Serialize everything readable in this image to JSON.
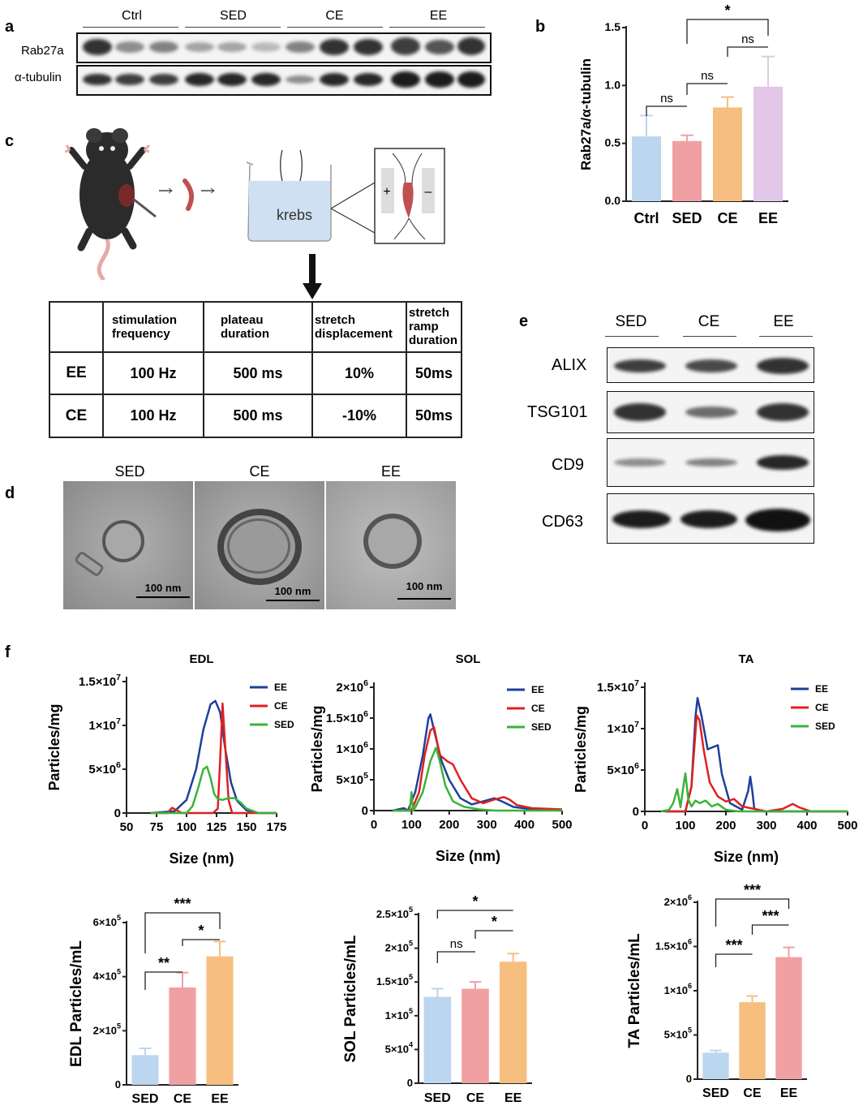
{
  "panels": {
    "a": "a",
    "b": "b",
    "c": "c",
    "d": "d",
    "e": "e",
    "f": "f"
  },
  "panel_a": {
    "groups": [
      "Ctrl",
      "SED",
      "CE",
      "EE"
    ],
    "rows": [
      "Rab27a",
      "α-tubulin"
    ]
  },
  "panel_b_chart": {
    "ylabel": "Rab27a/α-tubulin",
    "sig": [
      "ns",
      "ns",
      "ns",
      "*"
    ]
  },
  "panel_c": {
    "beaker_label": "krebs",
    "plus": "+",
    "minus": "–",
    "table": {
      "header": [
        "",
        "stimulation frequency",
        "plateau duration",
        "stretch displacement",
        "stretch ramp duration"
      ],
      "rows": [
        [
          "EE",
          "100 Hz",
          "500 ms",
          "10%",
          "50ms"
        ],
        [
          "CE",
          "100 Hz",
          "500 ms",
          "-10%",
          "50ms"
        ]
      ]
    }
  },
  "panel_d": {
    "labels": [
      "SED",
      "CE",
      "EE"
    ],
    "scale": "100 nm"
  },
  "panel_e": {
    "groups": [
      "SED",
      "CE",
      "EE"
    ],
    "rows": [
      "ALIX",
      "TSG101",
      "CD9",
      "CD63"
    ]
  },
  "chart_data": [
    {
      "id": "b",
      "type": "bar",
      "categories": [
        "Ctrl",
        "SED",
        "CE",
        "EE"
      ],
      "values": [
        0.56,
        0.52,
        0.81,
        0.99
      ],
      "errors": [
        0.18,
        0.05,
        0.09,
        0.26
      ],
      "colors": [
        "#bcd6f0",
        "#f0a0a3",
        "#f6bf80",
        "#e3c7e8"
      ],
      "ylabel": "Rab27a/α-tubulin",
      "ylim": [
        0,
        1.5
      ],
      "yticks": [
        "0.0",
        "0.5",
        "1.0",
        "1.5"
      ],
      "sig": [
        {
          "pair": [
            0,
            1
          ],
          "label": "ns"
        },
        {
          "pair": [
            1,
            2
          ],
          "label": "ns"
        },
        {
          "pair": [
            2,
            3
          ],
          "label": "ns"
        },
        {
          "pair": [
            1,
            3
          ],
          "label": "*"
        }
      ]
    },
    {
      "id": "f-edl-nta",
      "type": "line",
      "title": "EDL",
      "xlabel": "Size (nm)",
      "ylabel": "Particles/mg",
      "xlim": [
        50,
        175
      ],
      "xticks": [
        "50",
        "75",
        "100",
        "125",
        "150",
        "175"
      ],
      "ylim": [
        0,
        15000000
      ],
      "yticks": [
        "0",
        "5×10",
        "1×10",
        "1.5×10"
      ],
      "yticks_exp": [
        "",
        "6",
        "7",
        "7"
      ],
      "series": [
        {
          "name": "EE",
          "color": "#1f3f9c",
          "x": [
            70,
            90,
            100,
            108,
            114,
            120,
            124,
            128,
            132,
            137,
            142,
            150,
            160,
            175
          ],
          "y": [
            0,
            200000,
            1500000,
            5000000,
            9500000,
            12400000,
            12800000,
            11500000,
            7500000,
            3500000,
            1400000,
            300000,
            0,
            0
          ]
        },
        {
          "name": "CE",
          "color": "#e02020",
          "x": [
            70,
            84,
            88,
            92,
            96,
            110,
            122,
            126,
            128,
            130,
            132,
            135,
            138,
            145,
            160,
            175
          ],
          "y": [
            0,
            0,
            600000,
            300000,
            0,
            0,
            0,
            500000,
            6000000,
            12500000,
            8000000,
            1500000,
            0,
            0,
            0,
            0
          ]
        },
        {
          "name": "SED",
          "color": "#3ab33a",
          "x": [
            70,
            100,
            105,
            110,
            114,
            117,
            120,
            123,
            126,
            130,
            135,
            140,
            145,
            150,
            160,
            175
          ],
          "y": [
            0,
            0,
            800000,
            3000000,
            5000000,
            5300000,
            4000000,
            2200000,
            1600000,
            1500000,
            1700000,
            1700000,
            1200000,
            500000,
            0,
            0
          ]
        }
      ]
    },
    {
      "id": "f-sol-nta",
      "type": "line",
      "title": "SOL",
      "xlabel": "Size (nm)",
      "ylabel": "Particles/mg",
      "xlim": [
        0,
        500
      ],
      "xticks": [
        "0",
        "100",
        "200",
        "300",
        "400",
        "500"
      ],
      "ylim": [
        0,
        2000000
      ],
      "yticks": [
        "0",
        "5×10",
        "1×10",
        "1.5×10",
        "2×10"
      ],
      "yticks_exp": [
        "",
        "5",
        "6",
        "6",
        "6"
      ],
      "series": [
        {
          "name": "EE",
          "color": "#1f3f9c",
          "x": [
            50,
            80,
            90,
            110,
            130,
            145,
            150,
            160,
            180,
            200,
            230,
            260,
            290,
            320,
            340,
            370,
            420,
            500
          ],
          "y": [
            0,
            40000,
            0,
            300000,
            900000,
            1500000,
            1560000,
            1300000,
            800000,
            500000,
            200000,
            100000,
            150000,
            200000,
            150000,
            60000,
            20000,
            0
          ]
        },
        {
          "name": "CE",
          "color": "#e02020",
          "x": [
            50,
            100,
            120,
            135,
            150,
            160,
            175,
            195,
            210,
            230,
            260,
            290,
            320,
            345,
            360,
            380,
            420,
            500
          ],
          "y": [
            0,
            0,
            300000,
            900000,
            1300000,
            1350000,
            900000,
            800000,
            750000,
            500000,
            200000,
            120000,
            180000,
            220000,
            180000,
            90000,
            40000,
            20000
          ]
        },
        {
          "name": "SED",
          "color": "#3ab33a",
          "x": [
            50,
            95,
            100,
            104,
            110,
            130,
            150,
            165,
            175,
            190,
            210,
            240,
            280,
            320,
            500
          ],
          "y": [
            0,
            0,
            300000,
            0,
            50000,
            300000,
            800000,
            1020000,
            800000,
            400000,
            150000,
            60000,
            20000,
            0,
            0
          ]
        }
      ]
    },
    {
      "id": "f-ta-nta",
      "type": "line",
      "title": "TA",
      "xlabel": "Size (nm)",
      "ylabel": "Particles/mg",
      "xlim": [
        0,
        500
      ],
      "xticks": [
        "0",
        "100",
        "200",
        "300",
        "400",
        "500"
      ],
      "ylim": [
        0,
        15000000
      ],
      "yticks": [
        "0",
        "5×10",
        "1×10",
        "1.5×10"
      ],
      "yticks_exp": [
        "",
        "6",
        "7",
        "7"
      ],
      "series": [
        {
          "name": "EE",
          "color": "#1f3f9c",
          "x": [
            50,
            100,
            115,
            125,
            130,
            140,
            155,
            170,
            180,
            190,
            210,
            240,
            255,
            260,
            265,
            270,
            290,
            330,
            500
          ],
          "y": [
            0,
            0,
            3000000,
            11500000,
            13700000,
            11500000,
            7500000,
            7800000,
            8000000,
            4500000,
            1000000,
            200000,
            2500000,
            4200000,
            2500000,
            300000,
            0,
            0,
            0
          ]
        },
        {
          "name": "CE",
          "color": "#e02020",
          "x": [
            50,
            100,
            115,
            128,
            135,
            145,
            160,
            180,
            200,
            220,
            240,
            300,
            340,
            365,
            380,
            410,
            500
          ],
          "y": [
            0,
            0,
            3000000,
            11600000,
            11000000,
            7500000,
            3500000,
            1800000,
            1200000,
            1500000,
            600000,
            0,
            300000,
            900000,
            500000,
            0,
            0
          ]
        },
        {
          "name": "SED",
          "color": "#3ab33a",
          "x": [
            40,
            60,
            70,
            80,
            88,
            95,
            100,
            107,
            115,
            125,
            135,
            150,
            165,
            180,
            200,
            230,
            500
          ],
          "y": [
            0,
            200000,
            1000000,
            2700000,
            500000,
            3000000,
            4600000,
            1500000,
            600000,
            1300000,
            1000000,
            1300000,
            600000,
            900000,
            200000,
            0,
            0
          ]
        }
      ]
    },
    {
      "id": "f-edl-bar",
      "type": "bar",
      "categories": [
        "SED",
        "CE",
        "EE"
      ],
      "values": [
        110000,
        360000,
        475000
      ],
      "errors": [
        25000,
        55000,
        55000
      ],
      "colors": [
        "#bcd6f0",
        "#f0a0a3",
        "#f6bf80"
      ],
      "ylabel": "EDL Particles/mL",
      "ylim": [
        0,
        600000
      ],
      "yticks": [
        "0",
        "2×10",
        "4×10",
        "6×10"
      ],
      "yticks_exp": [
        "",
        "5",
        "5",
        "5"
      ],
      "sig": [
        {
          "pair": [
            0,
            1
          ],
          "label": "**"
        },
        {
          "pair": [
            1,
            2
          ],
          "label": "*"
        },
        {
          "pair": [
            0,
            2
          ],
          "label": "***"
        }
      ]
    },
    {
      "id": "f-sol-bar",
      "type": "bar",
      "categories": [
        "SED",
        "CE",
        "EE"
      ],
      "values": [
        128000,
        140000,
        180000
      ],
      "errors": [
        12000,
        10000,
        12000
      ],
      "colors": [
        "#bcd6f0",
        "#f0a0a3",
        "#f6bf80"
      ],
      "ylabel": "SOL Particles/mL",
      "ylim": [
        0,
        250000
      ],
      "yticks": [
        "0",
        "5×10",
        "1×10",
        "1.5×10",
        "2×10",
        "2.5×10"
      ],
      "yticks_exp": [
        "",
        "4",
        "5",
        "5",
        "5",
        "5"
      ],
      "sig": [
        {
          "pair": [
            0,
            1
          ],
          "label": "ns"
        },
        {
          "pair": [
            1,
            2
          ],
          "label": "*"
        },
        {
          "pair": [
            0,
            2
          ],
          "label": "*"
        }
      ]
    },
    {
      "id": "f-ta-bar",
      "type": "bar",
      "categories": [
        "SED",
        "CE",
        "EE"
      ],
      "values": [
        300000,
        870000,
        1380000
      ],
      "errors": [
        25000,
        70000,
        110000
      ],
      "colors": [
        "#bcd6f0",
        "#f6bf80",
        "#f0a0a3"
      ],
      "ylabel": "TA  Particles/mL",
      "ylim": [
        0,
        2000000
      ],
      "yticks": [
        "0",
        "5×10",
        "1×10",
        "1.5×10",
        "2×10"
      ],
      "yticks_exp": [
        "",
        "5",
        "6",
        "6",
        "6"
      ],
      "sig": [
        {
          "pair": [
            0,
            1
          ],
          "label": "***"
        },
        {
          "pair": [
            1,
            2
          ],
          "label": "***"
        },
        {
          "pair": [
            0,
            2
          ],
          "label": "***"
        }
      ]
    }
  ]
}
